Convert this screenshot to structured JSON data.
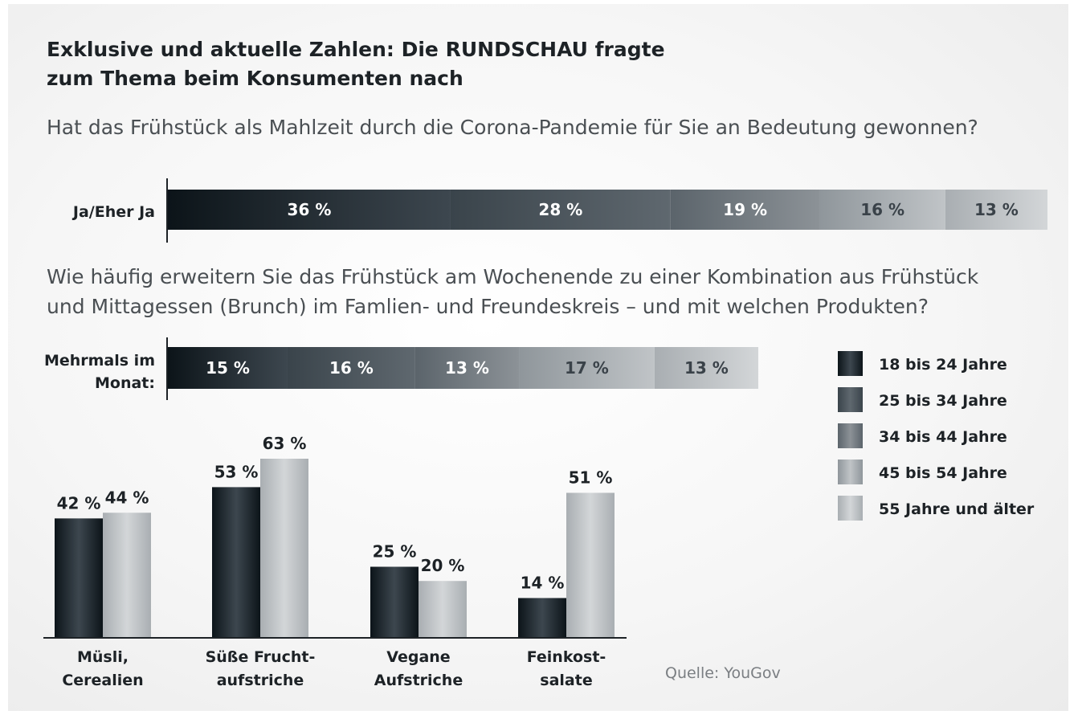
{
  "colors": {
    "g1": [
      "#0c1419",
      "#3d474f"
    ],
    "g2": [
      "#3a444b",
      "#5f686f"
    ],
    "g3": [
      "#5b646b",
      "#8c9297"
    ],
    "g4": [
      "#8f969b",
      "#c0c4c7"
    ],
    "g5": [
      "#a9aeb2",
      "#d3d6d8"
    ]
  },
  "header": {
    "title_line1": "Exklusive und aktuelle Zahlen: Die RUNDSCHAU fragte",
    "title_line2": "zum Thema beim Konsumenten nach"
  },
  "questions": {
    "q1": "Hat das Frühstück als Mahlzeit durch die Corona-Pandemie für Sie an Bedeutung gewonnen?",
    "q2_line1": "Wie häufig erweitern Sie das Frühstück am Wochenende zu einer Kombination aus Frühstück",
    "q2_line2": "und Mittagessen (Brunch) im Famlien- und Freundeskreis – und mit welchen Produkten?"
  },
  "source": "Quelle: YouGov",
  "chart_data": [
    {
      "type": "bar",
      "orientation": "horizontal-stacked",
      "row_label": "Ja/Eher Ja",
      "series": [
        "18 bis 24 Jahre",
        "25 bis 34 Jahre",
        "34 bis 44 Jahre",
        "45 bis 54 Jahre",
        "55 Jahre und älter"
      ],
      "values": [
        36,
        28,
        19,
        16,
        13
      ],
      "value_labels": [
        "36 %",
        "28 %",
        "19 %",
        "16 %",
        "13 %"
      ]
    },
    {
      "type": "bar",
      "orientation": "horizontal-stacked",
      "row_label_line1": "Mehrmals im",
      "row_label_line2": "Monat:",
      "series": [
        "18 bis 24 Jahre",
        "25 bis 34 Jahre",
        "34 bis 44 Jahre",
        "45 bis 54 Jahre",
        "55 Jahre und älter"
      ],
      "values": [
        15,
        16,
        13,
        17,
        13
      ],
      "value_labels": [
        "15 %",
        "16 %",
        "13 %",
        "17 %",
        "13 %"
      ]
    },
    {
      "type": "bar",
      "orientation": "vertical-grouped",
      "categories": [
        {
          "line1": "Müsli,",
          "line2": "Cerealien"
        },
        {
          "line1": "Süße Frucht-",
          "line2": "aufstriche"
        },
        {
          "line1": "Vegane",
          "line2": "Aufstriche"
        },
        {
          "line1": "Feinkost-",
          "line2": "salate"
        }
      ],
      "series": [
        {
          "name": "18 bis 24 Jahre",
          "values": [
            42,
            53,
            25,
            14
          ],
          "labels": [
            "42 %",
            "53 %",
            "25 %",
            "14 %"
          ]
        },
        {
          "name": "55 Jahre und älter",
          "values": [
            44,
            63,
            20,
            51
          ],
          "labels": [
            "44 %",
            "63 %",
            "20 %",
            "51 %"
          ]
        }
      ],
      "ylim": [
        0,
        63
      ]
    }
  ],
  "legend": {
    "placement": "right",
    "items": [
      "18 bis 24 Jahre",
      "25 bis 34 Jahre",
      "34 bis 44 Jahre",
      "45 bis 54 Jahre",
      "55 Jahre und älter"
    ]
  }
}
